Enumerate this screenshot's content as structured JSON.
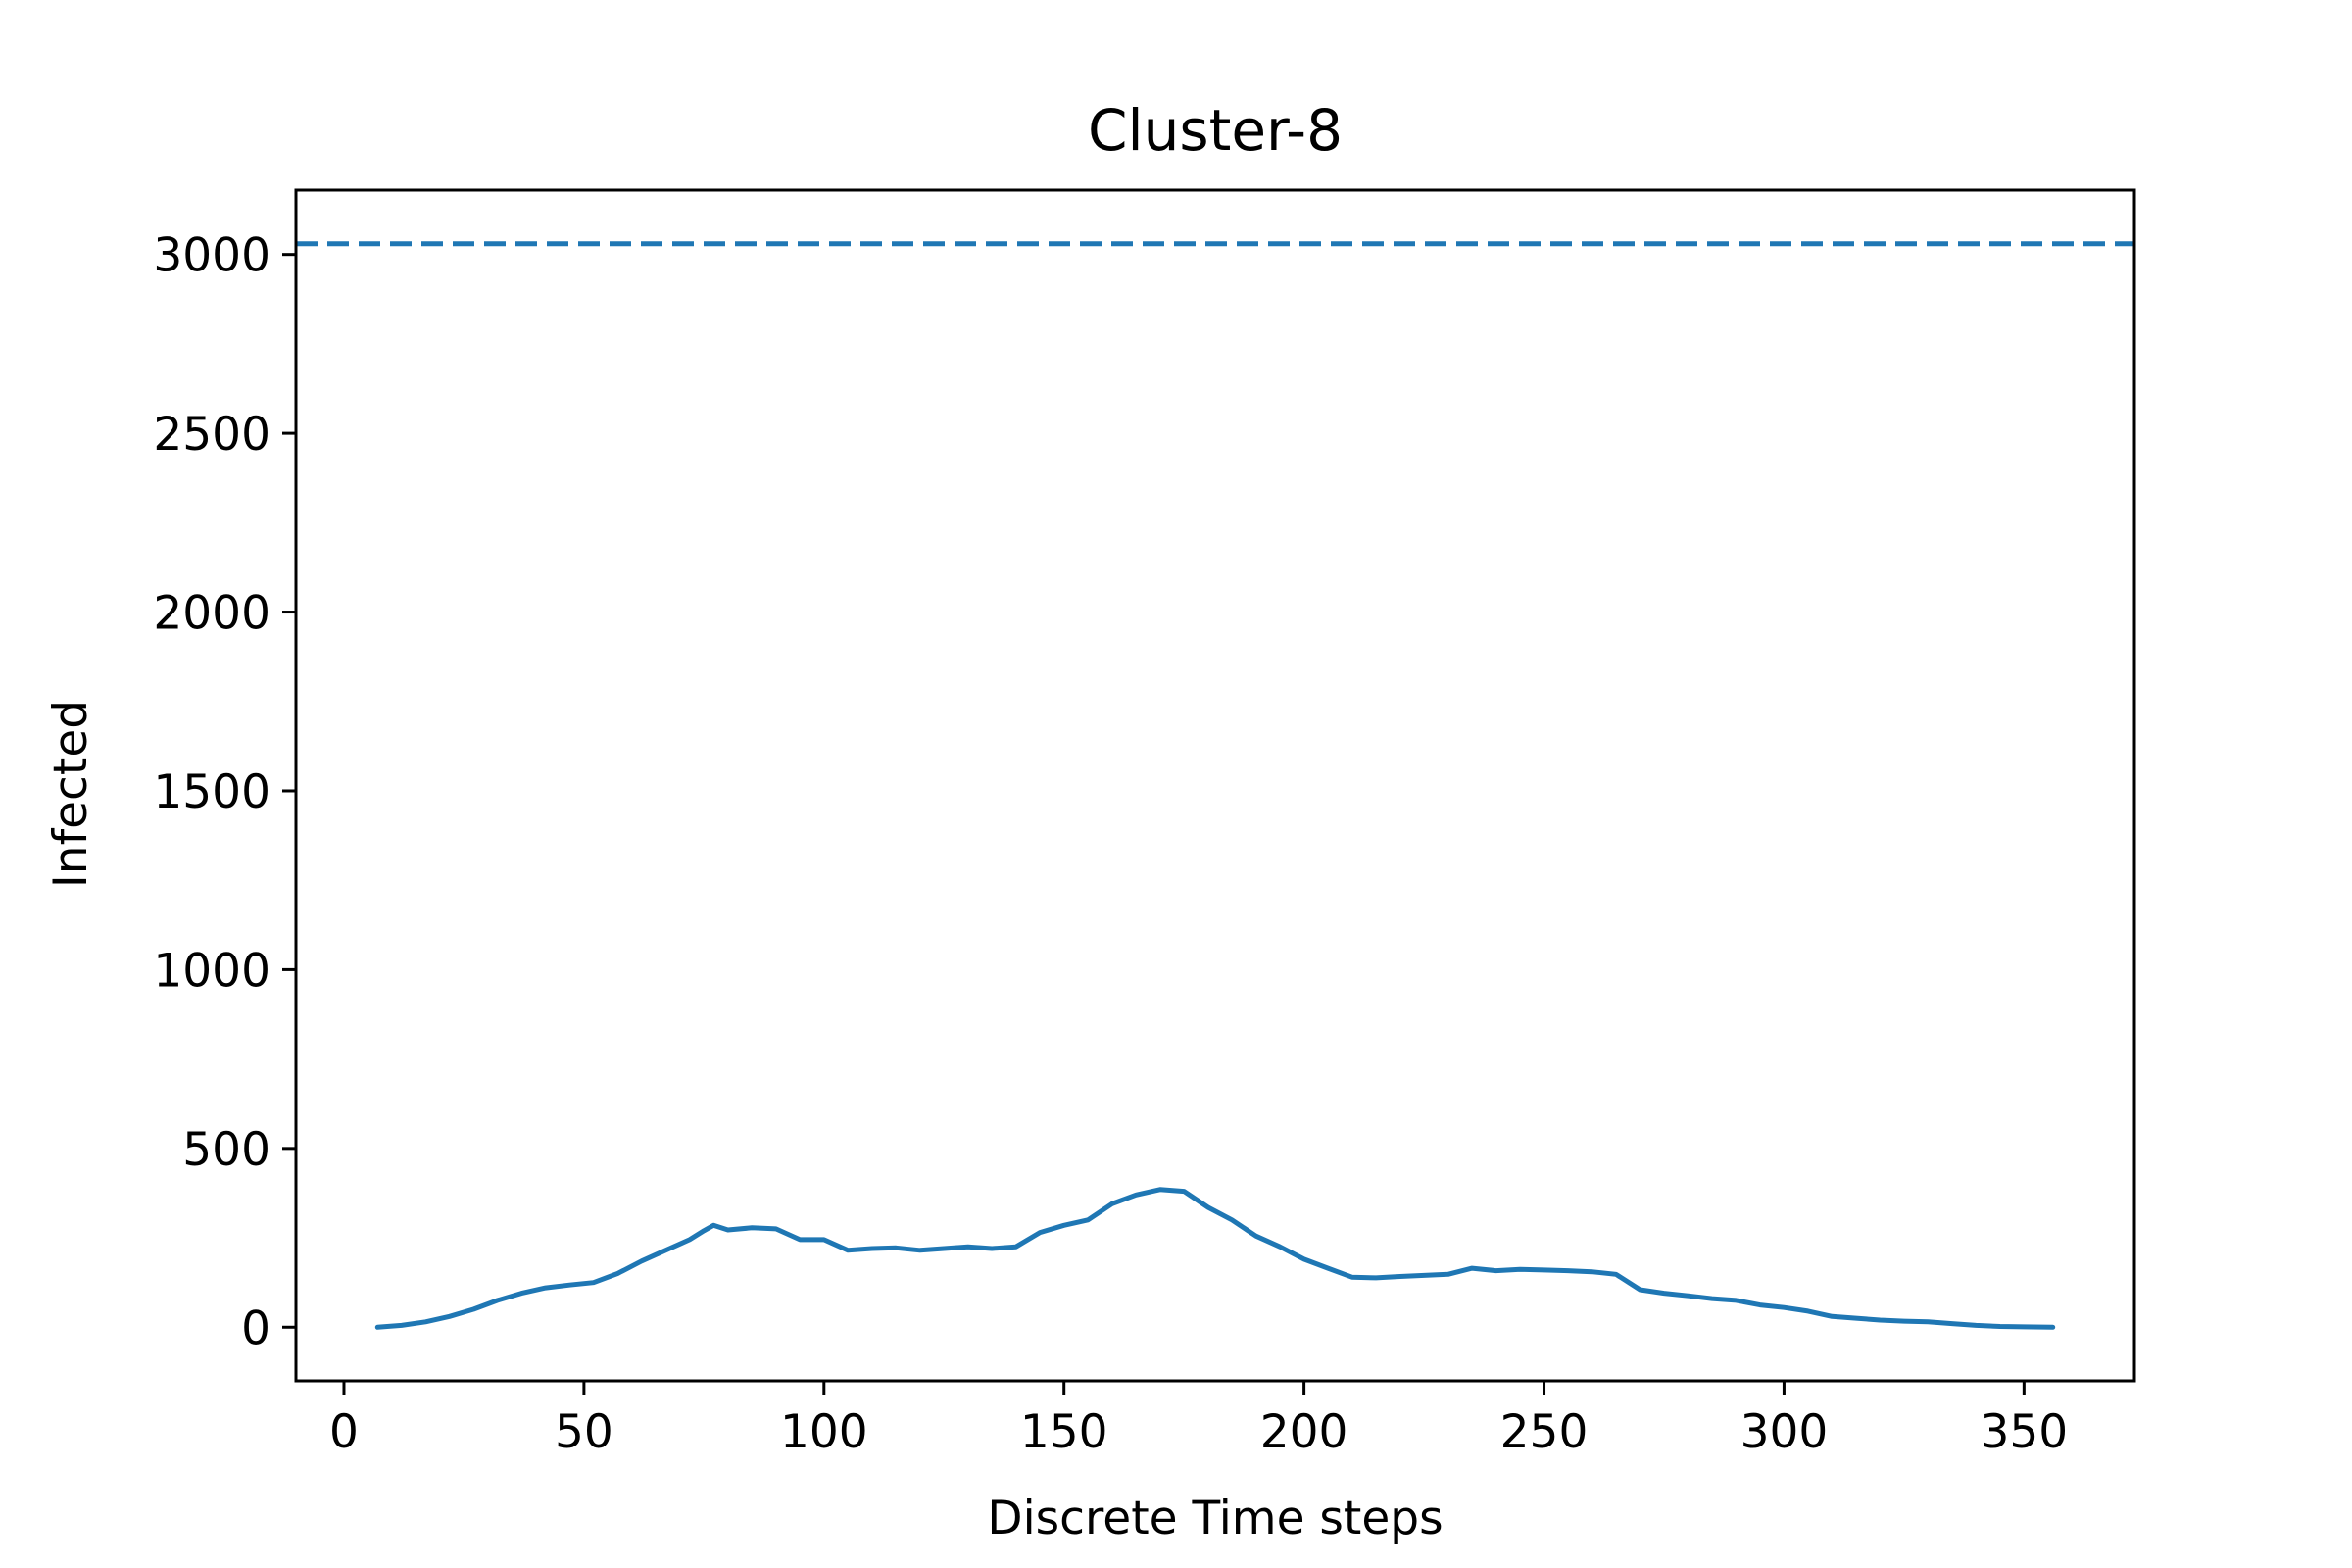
{
  "chart_data": {
    "type": "line",
    "title": "Cluster-8",
    "xlabel": "Discrete Time steps",
    "ylabel": "Infected",
    "xlim": [
      -10,
      373
    ],
    "ylim": [
      -150,
      3180
    ],
    "x_ticks": [
      0,
      50,
      100,
      150,
      200,
      250,
      300,
      350
    ],
    "y_ticks": [
      0,
      500,
      1000,
      1500,
      2000,
      2500,
      3000
    ],
    "grid": false,
    "colors": {
      "series": "#1f77b4",
      "axes": "#000000"
    },
    "reference_lines": [
      {
        "orientation": "horizontal",
        "y": 3030,
        "style": "dashed"
      }
    ],
    "series": [
      {
        "x": [
          7,
          12,
          17,
          22,
          27,
          32,
          37,
          42,
          47,
          52,
          57,
          62,
          67,
          72,
          75,
          77,
          80,
          85,
          90,
          95,
          100,
          105,
          110,
          115,
          120,
          125,
          130,
          135,
          140,
          145,
          150,
          155,
          160,
          165,
          170,
          175,
          180,
          185,
          190,
          195,
          200,
          205,
          210,
          215,
          220,
          225,
          230,
          235,
          240,
          245,
          250,
          255,
          260,
          265,
          270,
          275,
          280,
          285,
          290,
          295,
          300,
          305,
          310,
          315,
          320,
          325,
          330,
          335,
          340,
          345,
          350,
          356
        ],
        "values": [
          0,
          5,
          15,
          30,
          50,
          75,
          95,
          110,
          118,
          125,
          150,
          185,
          215,
          245,
          270,
          285,
          272,
          278,
          275,
          245,
          245,
          215,
          220,
          222,
          215,
          220,
          225,
          220,
          225,
          265,
          285,
          300,
          345,
          370,
          385,
          380,
          335,
          300,
          255,
          225,
          190,
          165,
          140,
          138,
          142,
          145,
          148,
          165,
          158,
          162,
          160,
          158,
          155,
          148,
          105,
          95,
          88,
          80,
          75,
          62,
          55,
          45,
          30,
          25,
          20,
          17,
          15,
          10,
          5,
          2,
          1,
          0
        ]
      }
    ]
  }
}
